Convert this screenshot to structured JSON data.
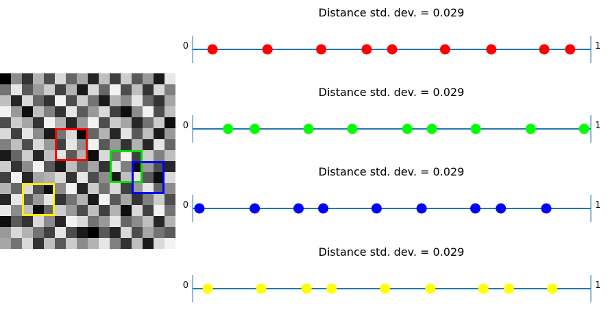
{
  "chart_data": [
    {
      "type": "heatmap",
      "grid_size": 16,
      "cells": [
        [
          0.0,
          0.55,
          0.2,
          0.7,
          0.3,
          0.85,
          0.4,
          0.65,
          0.15,
          0.75,
          0.25,
          0.8,
          0.35,
          0.6,
          0.1,
          0.9
        ],
        [
          0.45,
          0.9,
          0.35,
          0.6,
          0.8,
          0.25,
          0.7,
          0.1,
          0.85,
          0.4,
          0.95,
          0.3,
          0.75,
          0.2,
          0.85,
          0.5
        ],
        [
          0.75,
          0.15,
          0.85,
          0.4,
          0.2,
          0.95,
          0.3,
          0.8,
          0.45,
          0.1,
          0.7,
          0.55,
          0.9,
          0.4,
          0.2,
          0.65
        ],
        [
          0.95,
          0.6,
          0.05,
          0.75,
          0.5,
          0.2,
          0.9,
          0.35,
          0.6,
          0.85,
          0.25,
          0.05,
          0.55,
          0.95,
          0.3,
          0.75
        ],
        [
          0.3,
          0.8,
          0.65,
          0.2,
          0.95,
          0.7,
          0.15,
          0.6,
          0.95,
          0.3,
          0.8,
          0.65,
          0.15,
          0.45,
          0.8,
          0.05
        ],
        [
          0.85,
          0.25,
          0.9,
          0.55,
          0.1,
          0.45,
          0.85,
          0.0,
          0.4,
          0.7,
          0.15,
          0.9,
          0.35,
          0.75,
          0.1,
          0.6
        ],
        [
          0.5,
          0.75,
          0.3,
          0.85,
          0.6,
          0.25,
          0.9,
          0.55,
          0.95,
          0.35,
          0.6,
          0.2,
          0.7,
          0.15,
          0.9,
          0.4
        ],
        [
          0.1,
          0.4,
          0.8,
          0.15,
          0.75,
          0.9,
          0.35,
          0.7,
          0.05,
          0.85,
          0.45,
          0.95,
          0.25,
          0.8,
          0.5,
          0.75
        ],
        [
          0.8,
          0.2,
          0.55,
          0.95,
          0.35,
          0.1,
          0.75,
          0.4,
          0.65,
          0.2,
          0.9,
          0.5,
          0.05,
          0.6,
          0.3,
          0.15
        ],
        [
          0.25,
          0.95,
          0.15,
          0.65,
          0.7,
          0.85,
          0.2,
          0.9,
          0.3,
          0.55,
          0.1,
          0.75,
          0.9,
          0.35,
          0.05,
          0.85
        ],
        [
          0.7,
          0.4,
          0.85,
          0.3,
          0.05,
          0.55,
          0.95,
          0.15,
          0.8,
          0.45,
          0.85,
          0.25,
          0.6,
          0.9,
          0.4,
          0.55
        ],
        [
          0.15,
          0.9,
          0.35,
          0.6,
          0.9,
          0.2,
          0.45,
          0.7,
          0.1,
          0.95,
          0.35,
          0.65,
          0.2,
          0.5,
          0.8,
          0.3
        ],
        [
          0.9,
          0.55,
          0.75,
          0.05,
          0.4,
          0.8,
          0.6,
          0.3,
          0.75,
          0.25,
          0.7,
          0.05,
          0.85,
          0.25,
          0.95,
          0.45
        ],
        [
          0.05,
          0.35,
          0.2,
          0.85,
          0.55,
          0.15,
          0.95,
          0.85,
          0.45,
          0.6,
          0.9,
          0.4,
          0.55,
          0.75,
          0.15,
          0.7
        ],
        [
          0.6,
          0.85,
          0.7,
          0.45,
          0.25,
          0.9,
          0.3,
          0.1,
          0.0,
          0.35,
          0.15,
          0.85,
          0.3,
          0.65,
          0.45,
          0.35
        ],
        [
          0.65,
          0.45,
          0.85,
          0.2,
          0.75,
          0.35,
          0.8,
          0.55,
          0.7,
          0.9,
          0.5,
          0.2,
          0.75,
          0.1,
          0.85,
          0.95
        ]
      ],
      "boxes": [
        {
          "color": "#ff0000",
          "col": 5,
          "row": 5,
          "size": 3
        },
        {
          "color": "#00e000",
          "col": 10,
          "row": 7,
          "size": 3
        },
        {
          "color": "#0000ff",
          "col": 12,
          "row": 8,
          "size": 3
        },
        {
          "color": "#ffee00",
          "col": 2,
          "row": 10,
          "size": 3
        }
      ]
    },
    {
      "type": "scatter",
      "title": "Distance std. dev. = 0.029",
      "xlim": [
        0,
        1
      ],
      "end_labels": [
        "0",
        "1"
      ],
      "color": "#ff0000",
      "x": [
        0.05,
        0.188,
        0.323,
        0.437,
        0.501,
        0.634,
        0.75,
        0.883,
        0.948
      ]
    },
    {
      "type": "scatter",
      "title": "Distance std. dev. = 0.029",
      "xlim": [
        0,
        1
      ],
      "end_labels": [
        "0",
        "1"
      ],
      "color": "#00ff00",
      "x": [
        0.089,
        0.156,
        0.291,
        0.401,
        0.539,
        0.601,
        0.711,
        0.849,
        0.983
      ]
    },
    {
      "type": "scatter",
      "title": "Distance std. dev. = 0.029",
      "xlim": [
        0,
        1
      ],
      "end_labels": [
        "0",
        "1"
      ],
      "color": "#0000ff",
      "x": [
        0.017,
        0.156,
        0.266,
        0.328,
        0.462,
        0.575,
        0.71,
        0.774,
        0.888
      ]
    },
    {
      "type": "scatter",
      "title": "Distance std. dev. = 0.029",
      "xlim": [
        0,
        1
      ],
      "end_labels": [
        "0",
        "1"
      ],
      "color": "#ffff00",
      "x": [
        0.038,
        0.172,
        0.286,
        0.349,
        0.483,
        0.597,
        0.73,
        0.794,
        0.903
      ]
    }
  ]
}
